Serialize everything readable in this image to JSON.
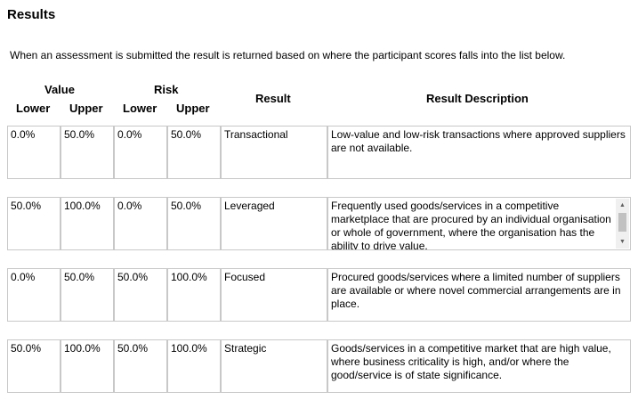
{
  "page": {
    "title": "Results",
    "intro": "When an assessment is submitted the result is returned based on where the participant scores falls into the list below."
  },
  "headers": {
    "value": "Value",
    "risk": "Risk",
    "lower": "Lower",
    "upper": "Upper",
    "result": "Result",
    "description": "Result Description"
  },
  "rows": [
    {
      "value_lower": "0.0%",
      "value_upper": "50.0%",
      "risk_lower": "0.0%",
      "risk_upper": "50.0%",
      "result": "Transactional",
      "description": "Low-value and low-risk transactions where approved suppliers are not available."
    },
    {
      "value_lower": "50.0%",
      "value_upper": "100.0%",
      "risk_lower": "0.0%",
      "risk_upper": "50.0%",
      "result": "Leveraged",
      "description": "Frequently used goods/services in a competitive marketplace that are procured by an individual organisation or whole of government, where the organisation has the ability to drive value."
    },
    {
      "value_lower": "0.0%",
      "value_upper": "50.0%",
      "risk_lower": "50.0%",
      "risk_upper": "100.0%",
      "result": "Focused",
      "description": "Procured goods/services where a limited number of suppliers are available or where novel commercial arrangements are in place."
    },
    {
      "value_lower": "50.0%",
      "value_upper": "100.0%",
      "risk_lower": "50.0%",
      "risk_upper": "100.0%",
      "result": "Strategic",
      "description": "Goods/services in a competitive market that are high value, where business criticality is high, and/or where the good/service is of state significance."
    }
  ]
}
